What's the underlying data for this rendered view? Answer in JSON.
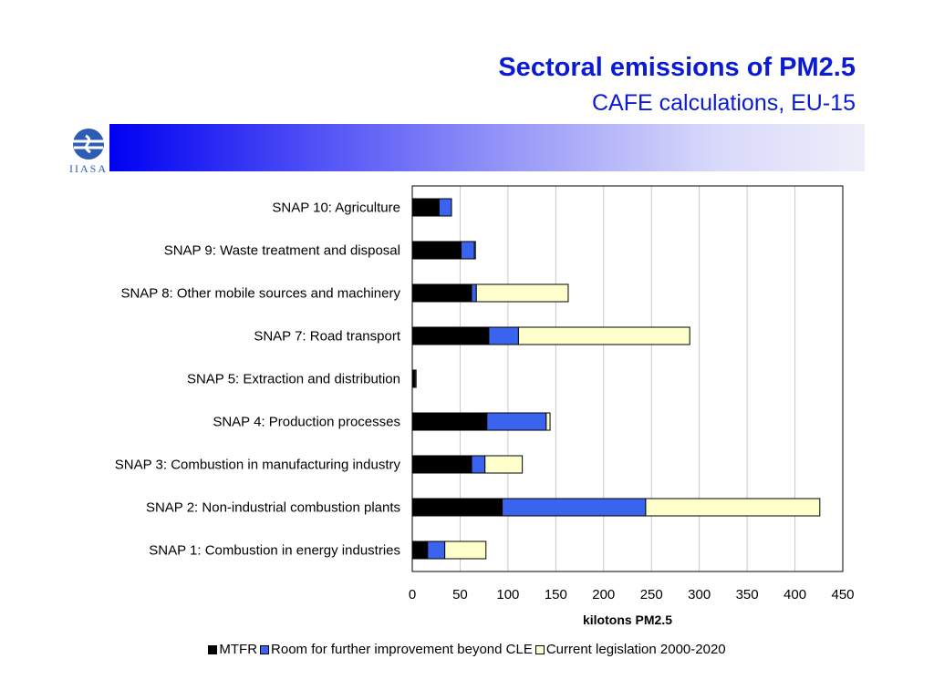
{
  "header": {
    "title": "Sectoral emissions of PM2.5",
    "subtitle": "CAFE calculations, EU-15",
    "logo_text": "IIASA"
  },
  "chart_data": {
    "type": "bar",
    "orientation": "horizontal",
    "stacked": true,
    "categories": [
      "SNAP 10: Agriculture",
      "SNAP 9: Waste treatment and disposal",
      "SNAP 8: Other mobile sources and machinery",
      "SNAP 7: Road transport",
      "SNAP 5: Extraction and distribution",
      "SNAP 4: Production processes",
      "SNAP 3: Combustion in manufacturing industry",
      "SNAP 2: Non-industrial combustion plants",
      "SNAP 1: Combustion in energy industries"
    ],
    "series": [
      {
        "name": "MTFR",
        "color": "#000000",
        "values": [
          28,
          51,
          62,
          80,
          2,
          78,
          62,
          94,
          16
        ]
      },
      {
        "name": "Room for further improvement beyond CLE",
        "color": "#3a64ee",
        "values": [
          13,
          14,
          5,
          31,
          1,
          62,
          14,
          150,
          18
        ]
      },
      {
        "name": "Current legislation 2000-2020",
        "color": "#ffffcc",
        "values": [
          0,
          1,
          96,
          179,
          1,
          4,
          39,
          182,
          43
        ]
      }
    ],
    "xlabel": "kilotons PM2.5",
    "ylabel": "",
    "xlim": [
      0,
      450
    ],
    "xticks": [
      0,
      50,
      100,
      150,
      200,
      250,
      300,
      350,
      400,
      450
    ],
    "grid": true,
    "legend_position": "bottom"
  }
}
